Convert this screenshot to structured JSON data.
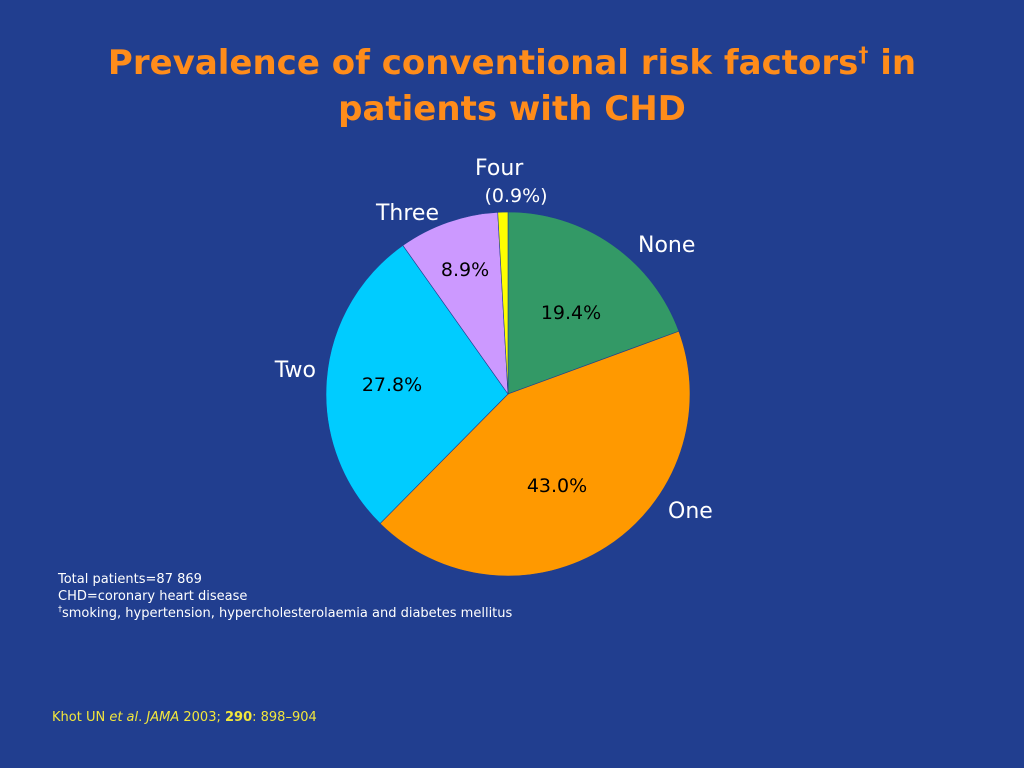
{
  "slide": {
    "title_main": "Prevalence of conventional risk factors",
    "title_dagger": "†",
    "title_tail": " in patients with CHD"
  },
  "chart_data": {
    "type": "pie",
    "start_angle_deg": 0,
    "direction": "clockwise",
    "slices": [
      {
        "name": "None",
        "value": 19.4,
        "value_label": "19.4%",
        "color": "#339966"
      },
      {
        "name": "One",
        "value": 43.0,
        "value_label": "43.0%",
        "color": "#ff9900"
      },
      {
        "name": "Two",
        "value": 27.8,
        "value_label": "27.8%",
        "color": "#00ccff"
      },
      {
        "name": "Three",
        "value": 8.9,
        "value_label": "8.9%",
        "color": "#cc99ff"
      },
      {
        "name": "Four",
        "value": 0.9,
        "value_label": "(0.9%)",
        "color": "#ffff00"
      }
    ]
  },
  "footnotes": {
    "total": "Total patients=87 869",
    "abbrev": "CHD=coronary heart disease",
    "dagger": "†",
    "dagger_text": "smoking, hypertension, hypercholesterolaemia and diabetes mellitus"
  },
  "citation": {
    "authors": "Khot UN ",
    "etal": "et al",
    "sep1": ". ",
    "journal": "JAMA",
    "year": " 2003; ",
    "volume": "290",
    "pages": ": 898–904"
  }
}
